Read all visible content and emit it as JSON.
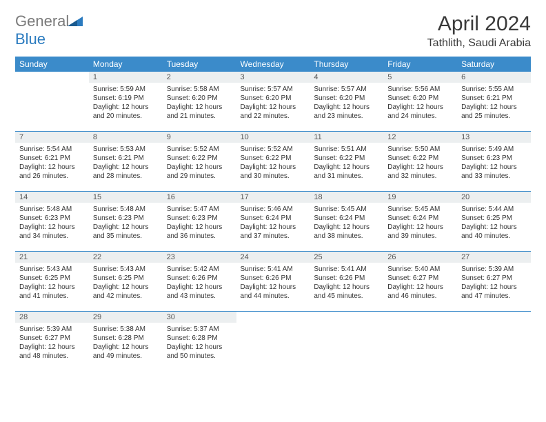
{
  "logo": {
    "text_general": "General",
    "text_blue": "Blue"
  },
  "header": {
    "title": "April 2024",
    "location": "Tathlith, Saudi Arabia"
  },
  "colors": {
    "header_bg": "#3b8bca",
    "header_fg": "#ffffff",
    "daynum_bg": "#eceff0",
    "text": "#333333",
    "border": "#3b8bca",
    "logo_gray": "#7a7a7a",
    "logo_blue": "#2b7bbf"
  },
  "weekdays": [
    "Sunday",
    "Monday",
    "Tuesday",
    "Wednesday",
    "Thursday",
    "Friday",
    "Saturday"
  ],
  "weeks": [
    [
      null,
      {
        "n": "1",
        "sr": "5:59 AM",
        "ss": "6:19 PM",
        "dl": "12 hours and 20 minutes."
      },
      {
        "n": "2",
        "sr": "5:58 AM",
        "ss": "6:20 PM",
        "dl": "12 hours and 21 minutes."
      },
      {
        "n": "3",
        "sr": "5:57 AM",
        "ss": "6:20 PM",
        "dl": "12 hours and 22 minutes."
      },
      {
        "n": "4",
        "sr": "5:57 AM",
        "ss": "6:20 PM",
        "dl": "12 hours and 23 minutes."
      },
      {
        "n": "5",
        "sr": "5:56 AM",
        "ss": "6:20 PM",
        "dl": "12 hours and 24 minutes."
      },
      {
        "n": "6",
        "sr": "5:55 AM",
        "ss": "6:21 PM",
        "dl": "12 hours and 25 minutes."
      }
    ],
    [
      {
        "n": "7",
        "sr": "5:54 AM",
        "ss": "6:21 PM",
        "dl": "12 hours and 26 minutes."
      },
      {
        "n": "8",
        "sr": "5:53 AM",
        "ss": "6:21 PM",
        "dl": "12 hours and 28 minutes."
      },
      {
        "n": "9",
        "sr": "5:52 AM",
        "ss": "6:22 PM",
        "dl": "12 hours and 29 minutes."
      },
      {
        "n": "10",
        "sr": "5:52 AM",
        "ss": "6:22 PM",
        "dl": "12 hours and 30 minutes."
      },
      {
        "n": "11",
        "sr": "5:51 AM",
        "ss": "6:22 PM",
        "dl": "12 hours and 31 minutes."
      },
      {
        "n": "12",
        "sr": "5:50 AM",
        "ss": "6:22 PM",
        "dl": "12 hours and 32 minutes."
      },
      {
        "n": "13",
        "sr": "5:49 AM",
        "ss": "6:23 PM",
        "dl": "12 hours and 33 minutes."
      }
    ],
    [
      {
        "n": "14",
        "sr": "5:48 AM",
        "ss": "6:23 PM",
        "dl": "12 hours and 34 minutes."
      },
      {
        "n": "15",
        "sr": "5:48 AM",
        "ss": "6:23 PM",
        "dl": "12 hours and 35 minutes."
      },
      {
        "n": "16",
        "sr": "5:47 AM",
        "ss": "6:23 PM",
        "dl": "12 hours and 36 minutes."
      },
      {
        "n": "17",
        "sr": "5:46 AM",
        "ss": "6:24 PM",
        "dl": "12 hours and 37 minutes."
      },
      {
        "n": "18",
        "sr": "5:45 AM",
        "ss": "6:24 PM",
        "dl": "12 hours and 38 minutes."
      },
      {
        "n": "19",
        "sr": "5:45 AM",
        "ss": "6:24 PM",
        "dl": "12 hours and 39 minutes."
      },
      {
        "n": "20",
        "sr": "5:44 AM",
        "ss": "6:25 PM",
        "dl": "12 hours and 40 minutes."
      }
    ],
    [
      {
        "n": "21",
        "sr": "5:43 AM",
        "ss": "6:25 PM",
        "dl": "12 hours and 41 minutes."
      },
      {
        "n": "22",
        "sr": "5:43 AM",
        "ss": "6:25 PM",
        "dl": "12 hours and 42 minutes."
      },
      {
        "n": "23",
        "sr": "5:42 AM",
        "ss": "6:26 PM",
        "dl": "12 hours and 43 minutes."
      },
      {
        "n": "24",
        "sr": "5:41 AM",
        "ss": "6:26 PM",
        "dl": "12 hours and 44 minutes."
      },
      {
        "n": "25",
        "sr": "5:41 AM",
        "ss": "6:26 PM",
        "dl": "12 hours and 45 minutes."
      },
      {
        "n": "26",
        "sr": "5:40 AM",
        "ss": "6:27 PM",
        "dl": "12 hours and 46 minutes."
      },
      {
        "n": "27",
        "sr": "5:39 AM",
        "ss": "6:27 PM",
        "dl": "12 hours and 47 minutes."
      }
    ],
    [
      {
        "n": "28",
        "sr": "5:39 AM",
        "ss": "6:27 PM",
        "dl": "12 hours and 48 minutes."
      },
      {
        "n": "29",
        "sr": "5:38 AM",
        "ss": "6:28 PM",
        "dl": "12 hours and 49 minutes."
      },
      {
        "n": "30",
        "sr": "5:37 AM",
        "ss": "6:28 PM",
        "dl": "12 hours and 50 minutes."
      },
      null,
      null,
      null,
      null
    ]
  ],
  "labels": {
    "sunrise": "Sunrise:",
    "sunset": "Sunset:",
    "daylight": "Daylight:"
  }
}
